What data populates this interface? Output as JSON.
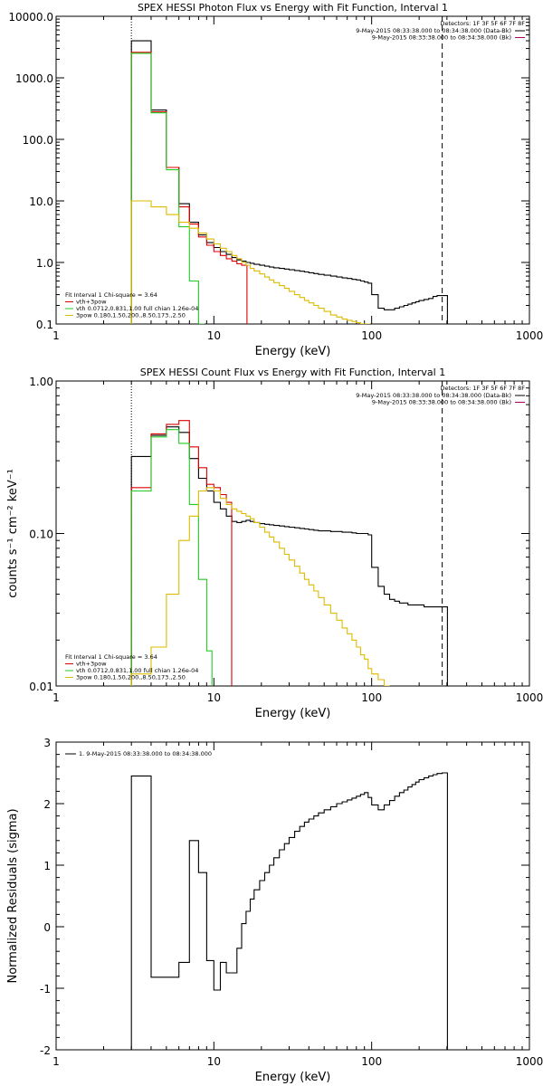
{
  "chart_data": [
    {
      "type": "line",
      "title": "SPEX HESSI Photon Flux vs Energy with Fit Function, Interval 1",
      "xlabel": "Energy (keV)",
      "ylabel": "",
      "xscale": "log",
      "yscale": "log",
      "xlim": [
        1,
        1000
      ],
      "ylim": [
        0.1,
        10000
      ],
      "xticks": [
        "1",
        "10",
        "100",
        "1000"
      ],
      "yticks": [
        "0.1",
        "1.0",
        "10.0",
        "100.0",
        "1000.0",
        "10000.0"
      ],
      "fit_range_keV": [
        3.0,
        280
      ],
      "legend_header": {
        "detectors": "Detectors: 1F 3F 5F 6F 7F 8F",
        "lines": [
          {
            "text": "9-May-2015 08:33:38.000 to 08:34:38.000 (Data-Bk)",
            "color": "#000000"
          },
          {
            "text": "9-May-2015 08:33:38.000 to 08:34:38.000 (Bk)",
            "color": "#b0006b"
          }
        ]
      },
      "legend_fit": {
        "header": "Fit Interval 1    Chi-square = 3.64",
        "items": [
          {
            "text": "vth+3pow",
            "color": "#dd0000"
          },
          {
            "text": "vth 0.0712,0.831,1.00   full chian 1.26e-04",
            "color": "#22cc22"
          },
          {
            "text": "3pow 0.180,1.50,200.,8.50,173.,2.50",
            "color": "#ddbb00"
          }
        ]
      },
      "series": [
        {
          "name": "Data-Bk",
          "color": "#000000",
          "x": [
            3.0,
            4.0,
            5.0,
            6.0,
            7.0,
            8.0,
            9.0,
            10.0,
            11.0,
            12.0,
            13.0,
            14.0,
            15.0,
            16.0,
            17.0,
            18.0,
            19.5,
            21.0,
            22.5,
            24.0,
            26.0,
            28.0,
            30.0,
            32.5,
            35.0,
            37.5,
            40.0,
            43.0,
            46.0,
            50.0,
            55.0,
            60.0,
            65.0,
            70.0,
            75.0,
            80.0,
            85.0,
            90.0,
            95.0,
            100.0,
            110.0,
            120.0,
            130.0,
            140.0,
            150.0,
            160.0,
            170.0,
            180.0,
            190.0,
            200.0,
            215.0,
            230.0,
            245.0,
            260.0,
            280.0
          ],
          "y": [
            4000,
            300,
            35,
            9,
            4.5,
            2.8,
            2.1,
            1.75,
            1.5,
            1.35,
            1.2,
            1.1,
            1.05,
            1.0,
            0.97,
            0.93,
            0.9,
            0.87,
            0.84,
            0.82,
            0.8,
            0.78,
            0.76,
            0.74,
            0.72,
            0.7,
            0.68,
            0.66,
            0.64,
            0.62,
            0.6,
            0.58,
            0.56,
            0.55,
            0.53,
            0.52,
            0.5,
            0.48,
            0.46,
            0.3,
            0.18,
            0.17,
            0.17,
            0.18,
            0.19,
            0.2,
            0.21,
            0.22,
            0.23,
            0.24,
            0.25,
            0.26,
            0.28,
            0.29,
            0.29
          ]
        },
        {
          "name": "vth+3pow",
          "color": "#dd0000",
          "x": [
            3.0,
            4.0,
            5.0,
            6.0,
            7.0,
            8.0,
            9.0,
            10.0,
            11.0,
            12.0,
            13.0,
            14.0,
            15.0
          ],
          "y": [
            2600,
            280,
            35,
            8,
            4.2,
            2.6,
            1.9,
            1.5,
            1.3,
            1.15,
            1.05,
            0.95,
            0.9
          ]
        },
        {
          "name": "vth",
          "color": "#22cc22",
          "x": [
            3.0,
            4.0,
            5.0,
            6.0,
            7.0,
            8.0
          ],
          "y": [
            2500,
            270,
            32,
            3.8,
            0.5,
            0.1
          ]
        },
        {
          "name": "3pow",
          "color": "#ddbb00",
          "x": [
            3.0,
            4.0,
            5.0,
            6.0,
            7.0,
            8.0,
            9.0,
            10.0,
            11.0,
            12.0,
            13.0,
            14.0,
            15.0,
            16.0,
            17.0,
            18.0,
            19.5,
            21.0,
            22.5,
            24.0,
            26.0,
            28.0,
            30.0,
            32.5,
            35.0,
            37.5,
            40.0,
            43.0,
            46.0,
            50.0,
            55.0,
            60.0,
            65.0,
            70.0,
            75.0,
            80.0,
            85.0,
            90.0
          ],
          "y": [
            10,
            8,
            6,
            4.5,
            3.6,
            3.0,
            2.4,
            2.0,
            1.7,
            1.5,
            1.3,
            1.15,
            1.0,
            0.9,
            0.8,
            0.73,
            0.65,
            0.58,
            0.52,
            0.47,
            0.42,
            0.38,
            0.34,
            0.3,
            0.27,
            0.24,
            0.22,
            0.2,
            0.18,
            0.16,
            0.14,
            0.13,
            0.12,
            0.115,
            0.11,
            0.105,
            0.1,
            0.1
          ]
        }
      ]
    },
    {
      "type": "line",
      "title": "SPEX HESSI Count Flux vs Energy with Fit Function, Interval 1",
      "xlabel": "Energy (keV)",
      "ylabel": "counts s⁻¹ cm⁻² keV⁻¹",
      "xscale": "log",
      "yscale": "log",
      "xlim": [
        1,
        1000
      ],
      "ylim": [
        0.01,
        1.0
      ],
      "xticks": [
        "1",
        "10",
        "100",
        "1000"
      ],
      "yticks": [
        "0.01",
        "0.10",
        "1.00"
      ],
      "fit_range_keV": [
        3.0,
        280
      ],
      "legend_header": {
        "detectors": "Detectors: 1F 3F 5F 6F 7F 8F",
        "lines": [
          {
            "text": "9-May-2015 08:33:38.000 to 08:34:38.000 (Data-Bk)",
            "color": "#000000"
          },
          {
            "text": "9-May-2015 08:33:38.000 to 08:34:38.000 (Bk)",
            "color": "#b0006b"
          }
        ]
      },
      "legend_fit": {
        "header": "Fit Interval 1    Chi-square = 3.64",
        "items": [
          {
            "text": "vth+3pow",
            "color": "#dd0000"
          },
          {
            "text": "vth 0.0712,0.831,1.00   full chian 1.26e-04",
            "color": "#22cc22"
          },
          {
            "text": "3pow 0.180,1.50,200.,8.50,173.,2.50",
            "color": "#ddbb00"
          }
        ]
      },
      "series": [
        {
          "name": "Data-Bk",
          "color": "#000000",
          "x": [
            3.0,
            4.0,
            5.0,
            6.0,
            7.0,
            8.0,
            9.0,
            10.0,
            11.0,
            12.0,
            13.0,
            14.0,
            15.0,
            16.0,
            17.0,
            18.0,
            19.5,
            21.0,
            22.5,
            24.0,
            26.0,
            28.0,
            30.0,
            32.5,
            35.0,
            37.5,
            40.0,
            43.0,
            46.0,
            50.0,
            55.0,
            60.0,
            65.0,
            70.0,
            75.0,
            80.0,
            85.0,
            90.0,
            95.0,
            100.0,
            110.0,
            120.0,
            130.0,
            140.0,
            150.0,
            160.0,
            170.0,
            180.0,
            190.0,
            200.0,
            215.0,
            230.0,
            245.0,
            260.0,
            280.0
          ],
          "y": [
            0.32,
            0.44,
            0.5,
            0.46,
            0.31,
            0.23,
            0.19,
            0.16,
            0.145,
            0.13,
            0.12,
            0.118,
            0.12,
            0.122,
            0.12,
            0.118,
            0.116,
            0.115,
            0.114,
            0.113,
            0.112,
            0.111,
            0.11,
            0.109,
            0.108,
            0.107,
            0.106,
            0.105,
            0.104,
            0.104,
            0.103,
            0.103,
            0.102,
            0.102,
            0.101,
            0.1,
            0.1,
            0.1,
            0.098,
            0.06,
            0.045,
            0.04,
            0.037,
            0.036,
            0.035,
            0.035,
            0.034,
            0.034,
            0.034,
            0.034,
            0.033,
            0.033,
            0.033,
            0.033,
            0.033
          ]
        },
        {
          "name": "vth+3pow",
          "color": "#dd0000",
          "x": [
            3.0,
            4.0,
            5.0,
            6.0,
            7.0,
            8.0,
            9.0,
            10.0,
            11.0,
            12.0
          ],
          "y": [
            0.2,
            0.45,
            0.52,
            0.55,
            0.37,
            0.27,
            0.21,
            0.2,
            0.18,
            0.16
          ]
        },
        {
          "name": "vth",
          "color": "#22cc22",
          "x": [
            3.0,
            4.0,
            5.0,
            6.0,
            7.0,
            8.0,
            9.0
          ],
          "y": [
            0.19,
            0.43,
            0.48,
            0.39,
            0.155,
            0.05,
            0.017
          ]
        },
        {
          "name": "3pow",
          "color": "#ddbb00",
          "x": [
            3.0,
            4.0,
            5.0,
            6.0,
            7.0,
            8.0,
            9.0,
            10.0,
            11.0,
            12.0,
            13.0,
            14.0,
            15.0,
            16.0,
            17.0,
            18.0,
            19.5,
            21.0,
            22.5,
            24.0,
            26.0,
            28.0,
            30.0,
            32.5,
            35.0,
            37.5,
            40.0,
            43.0,
            46.0,
            50.0,
            55.0,
            60.0,
            65.0,
            70.0,
            75.0,
            80.0,
            85.0,
            90.0,
            95.0,
            100.0,
            110.0,
            120.0
          ],
          "y": [
            0.012,
            0.018,
            0.04,
            0.09,
            0.13,
            0.19,
            0.2,
            0.19,
            0.17,
            0.155,
            0.145,
            0.14,
            0.135,
            0.13,
            0.125,
            0.118,
            0.11,
            0.102,
            0.095,
            0.088,
            0.08,
            0.073,
            0.067,
            0.061,
            0.055,
            0.05,
            0.046,
            0.042,
            0.038,
            0.034,
            0.03,
            0.027,
            0.024,
            0.022,
            0.02,
            0.018,
            0.016,
            0.015,
            0.013,
            0.012,
            0.011,
            0.01
          ]
        }
      ]
    },
    {
      "type": "line",
      "title": "",
      "xlabel": "Energy (keV)",
      "ylabel": "Normalized Residuals (sigma)",
      "xscale": "log",
      "yscale": "linear",
      "xlim": [
        1,
        1000
      ],
      "ylim": [
        -2,
        3
      ],
      "xticks": [
        "1",
        "10",
        "100",
        "1000"
      ],
      "yticks": [
        "-2",
        "-1",
        "0",
        "1",
        "2",
        "3"
      ],
      "legend": "1.  9-May-2015 08:33:38.000 to 08:34:38.000",
      "series": [
        {
          "color": "#000000",
          "x": [
            3.0,
            4.0,
            5.0,
            6.0,
            7.0,
            8.0,
            9.0,
            10.0,
            11.0,
            12.0,
            13.0,
            14.0,
            15.0,
            16.0,
            17.0,
            18.0,
            19.5,
            21.0,
            22.5,
            24.0,
            26.0,
            28.0,
            30.0,
            32.5,
            35.0,
            37.5,
            40.0,
            43.0,
            46.0,
            50.0,
            55.0,
            60.0,
            65.0,
            70.0,
            75.0,
            80.0,
            85.0,
            90.0,
            95.0,
            100.0,
            110.0,
            120.0,
            130.0,
            140.0,
            150.0,
            160.0,
            170.0,
            180.0,
            190.0,
            200.0,
            215.0,
            230.0,
            245.0,
            260.0,
            280.0
          ],
          "y": [
            2.45,
            -0.82,
            -0.82,
            -0.58,
            1.4,
            0.88,
            -0.55,
            -1.03,
            -0.58,
            -0.75,
            -0.75,
            -0.35,
            0.05,
            0.25,
            0.45,
            0.6,
            0.75,
            0.88,
            1.0,
            1.12,
            1.25,
            1.35,
            1.45,
            1.55,
            1.63,
            1.7,
            1.75,
            1.8,
            1.85,
            1.9,
            1.95,
            2.0,
            2.03,
            2.06,
            2.09,
            2.12,
            2.15,
            2.18,
            2.1,
            1.98,
            1.9,
            1.98,
            2.05,
            2.12,
            2.18,
            2.22,
            2.27,
            2.31,
            2.35,
            2.39,
            2.42,
            2.45,
            2.47,
            2.49,
            2.5
          ]
        }
      ]
    }
  ]
}
